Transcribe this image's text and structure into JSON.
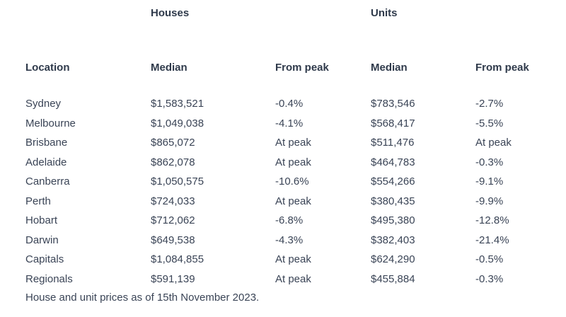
{
  "groups": {
    "houses": "Houses",
    "units": "Units"
  },
  "columns": {
    "location": "Location",
    "houses_median": "Median",
    "houses_from_peak": "From peak",
    "units_median": "Median",
    "units_from_peak": "From peak"
  },
  "rows": [
    [
      "Sydney",
      "$1,583,521",
      "-0.4%",
      "$783,546",
      "-2.7%"
    ],
    [
      "Melbourne",
      "$1,049,038",
      "-4.1%",
      "$568,417",
      "-5.5%"
    ],
    [
      "Brisbane",
      "$865,072",
      "At peak",
      "$511,476",
      "At peak"
    ],
    [
      "Adelaide",
      "$862,078",
      "At peak",
      "$464,783",
      "-0.3%"
    ],
    [
      "Canberra",
      "$1,050,575",
      "-10.6%",
      "$554,266",
      "-9.1%"
    ],
    [
      "Perth",
      "$724,033",
      "At peak",
      "$380,435",
      "-9.9%"
    ],
    [
      "Hobart",
      "$712,062",
      "-6.8%",
      "$495,380",
      "-12.8%"
    ],
    [
      "Darwin",
      "$649,538",
      "-4.3%",
      "$382,403",
      "-21.4%"
    ],
    [
      "Capitals",
      "$1,084,855",
      "At peak",
      "$624,290",
      "-0.5%"
    ],
    [
      "Regionals",
      "$591,139",
      "At peak",
      "$455,884",
      "-0.3%"
    ]
  ],
  "footnote": "House and unit prices as of 15th November 2023."
}
